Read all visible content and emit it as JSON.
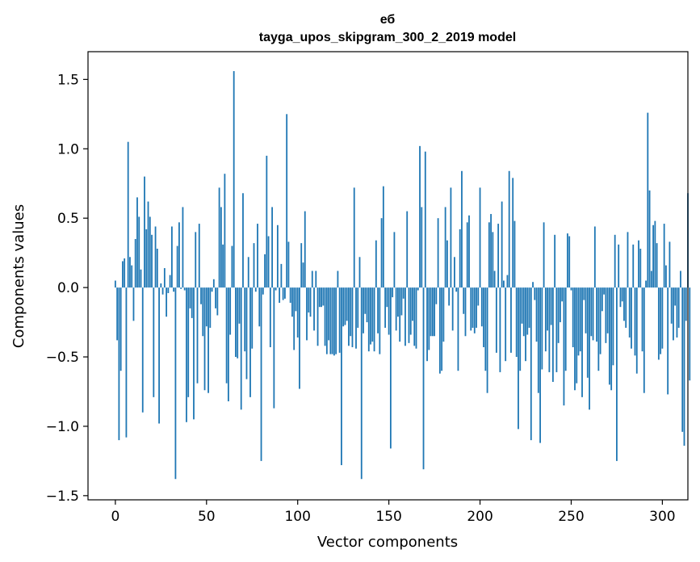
{
  "chart_data": {
    "type": "bar",
    "title_line1": "еб",
    "title_line2": "tayga_upos_skipgram_300_2_2019 model",
    "xlabel": "Vector components",
    "ylabel": "Components values",
    "xlim": [
      -15,
      314
    ],
    "ylim": [
      -1.53,
      1.7
    ],
    "xticks": [
      0,
      50,
      100,
      150,
      200,
      250,
      300
    ],
    "xtick_labels": [
      "0",
      "50",
      "100",
      "150",
      "200",
      "250",
      "300"
    ],
    "yticks": [
      -1.5,
      -1.0,
      -0.5,
      0.0,
      0.5,
      1.0,
      1.5
    ],
    "ytick_labels": [
      "−1.5",
      "−1.0",
      "−0.5",
      "0.0",
      "0.5",
      "1.0",
      "1.5"
    ],
    "bar_color": "#1f77b4",
    "values": [
      0.05,
      -0.38,
      -1.1,
      -0.6,
      0.19,
      0.21,
      -1.08,
      1.05,
      0.22,
      0.16,
      -0.24,
      0.35,
      0.65,
      0.51,
      0.13,
      -0.9,
      0.8,
      0.42,
      0.62,
      0.51,
      0.38,
      -0.79,
      0.44,
      0.28,
      -0.98,
      0.03,
      -0.05,
      0.14,
      -0.21,
      -0.04,
      0.09,
      0.44,
      -0.03,
      -1.38,
      0.3,
      0.47,
      -0.01,
      0.58,
      -0.02,
      -0.97,
      -0.79,
      -0.15,
      -0.22,
      -0.95,
      0.4,
      -0.69,
      0.46,
      -0.12,
      -0.35,
      -0.74,
      -0.28,
      -0.76,
      -0.29,
      -0.03,
      0.06,
      -0.15,
      -0.2,
      0.72,
      0.58,
      0.31,
      0.82,
      -0.69,
      -0.82,
      -0.34,
      0.3,
      1.56,
      -0.5,
      -0.51,
      -0.26,
      -0.88,
      0.68,
      -0.46,
      -0.66,
      0.22,
      -0.79,
      -0.44,
      0.32,
      -0.03,
      0.46,
      -0.28,
      -1.25,
      -0.05,
      0.24,
      0.95,
      0.37,
      -0.43,
      0.58,
      -0.87,
      -0.02,
      0.45,
      -0.11,
      0.17,
      -0.09,
      -0.08,
      1.25,
      0.33,
      -0.11,
      -0.21,
      -0.45,
      -0.17,
      -0.36,
      -0.73,
      0.32,
      0.18,
      0.55,
      -0.38,
      -0.18,
      -0.21,
      0.12,
      -0.31,
      0.12,
      -0.42,
      -0.14,
      -0.14,
      -0.13,
      -0.42,
      -0.48,
      -0.38,
      -0.48,
      -0.48,
      -0.49,
      -0.48,
      0.12,
      -0.47,
      -1.28,
      -0.28,
      -0.27,
      -0.24,
      -0.42,
      -0.35,
      -0.43,
      0.72,
      -0.44,
      -0.29,
      0.22,
      -1.38,
      -0.33,
      -0.19,
      -0.25,
      -0.46,
      -0.41,
      -0.39,
      -0.46,
      0.34,
      -0.33,
      -0.48,
      0.5,
      0.73,
      -0.29,
      -0.14,
      -0.34,
      -1.16,
      -0.07,
      0.4,
      -0.31,
      -0.21,
      -0.39,
      -0.2,
      -0.08,
      -0.42,
      0.55,
      -0.4,
      -0.34,
      -0.24,
      -0.42,
      -0.44,
      -0.02,
      1.02,
      0.58,
      -1.31,
      0.98,
      -0.53,
      -0.45,
      -0.35,
      -0.35,
      -0.35,
      -0.12,
      0.5,
      -0.62,
      -0.6,
      -0.39,
      0.58,
      0.34,
      -0.13,
      0.72,
      -0.31,
      0.22,
      -0.03,
      -0.6,
      0.42,
      0.84,
      -0.19,
      -0.35,
      0.47,
      0.52,
      -0.31,
      -0.29,
      -0.33,
      -0.29,
      -0.13,
      0.72,
      -0.28,
      -0.43,
      -0.6,
      -0.76,
      0.47,
      0.53,
      0.4,
      0.12,
      -0.47,
      0.46,
      -0.61,
      0.62,
      0.05,
      -0.53,
      0.09,
      0.84,
      -0.47,
      0.79,
      0.48,
      -0.5,
      -1.02,
      -0.6,
      -0.26,
      -0.35,
      -0.53,
      -0.34,
      -0.29,
      -1.1,
      0.04,
      -0.09,
      -0.39,
      -0.76,
      -1.12,
      -0.59,
      0.47,
      -0.46,
      -0.31,
      -0.61,
      -0.27,
      -0.68,
      0.38,
      -0.61,
      -0.4,
      -0.25,
      -0.1,
      -0.85,
      -0.6,
      0.39,
      0.37,
      -0.02,
      -0.43,
      -0.74,
      -0.69,
      -0.49,
      -0.46,
      -0.79,
      -0.09,
      -0.33,
      -0.65,
      -0.88,
      -0.35,
      -0.38,
      0.44,
      -0.39,
      -0.6,
      -0.48,
      -0.17,
      -0.05,
      -0.4,
      -0.33,
      -0.7,
      -0.74,
      -0.56,
      0.38,
      -1.25,
      0.31,
      -0.14,
      -0.1,
      -0.24,
      -0.29,
      0.4,
      -0.36,
      -0.44,
      0.31,
      -0.49,
      -0.62,
      0.34,
      0.28,
      -0.46,
      -0.76,
      0.05,
      1.26,
      0.7,
      0.12,
      0.45,
      0.48,
      0.32,
      -0.52,
      -0.48,
      -0.44,
      0.46,
      0.16,
      -0.77,
      0.33,
      -0.26,
      -0.38,
      -0.13,
      -0.36,
      -0.29,
      0.12,
      -1.04,
      -1.14,
      -0.24,
      0.68,
      -0.67
    ]
  }
}
